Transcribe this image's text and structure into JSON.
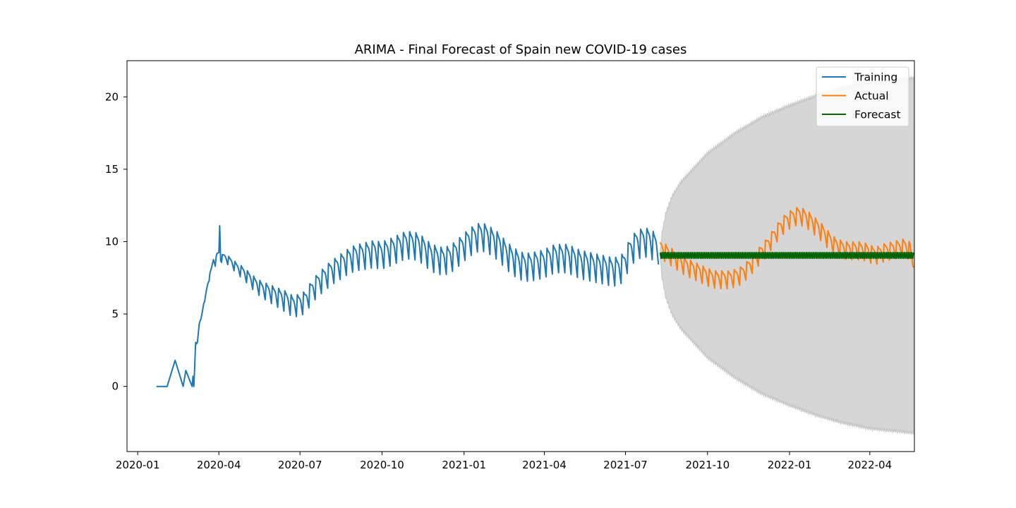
{
  "chart_data": {
    "type": "line",
    "title": "ARIMA - Final Forecast of Spain new COVID-19 cases",
    "xlabel": "",
    "ylabel": "",
    "x_axis": {
      "type": "date",
      "range": [
        "2019-12-20",
        "2022-05-21"
      ],
      "ticks": [
        {
          "date": "2020-01-01",
          "label": "2020-01"
        },
        {
          "date": "2020-04-01",
          "label": "2020-04"
        },
        {
          "date": "2020-07-01",
          "label": "2020-07"
        },
        {
          "date": "2020-10-01",
          "label": "2020-10"
        },
        {
          "date": "2021-01-01",
          "label": "2021-01"
        },
        {
          "date": "2021-04-01",
          "label": "2021-04"
        },
        {
          "date": "2021-07-01",
          "label": "2021-07"
        },
        {
          "date": "2021-10-01",
          "label": "2021-10"
        },
        {
          "date": "2022-01-01",
          "label": "2022-01"
        },
        {
          "date": "2022-04-01",
          "label": "2022-04"
        }
      ]
    },
    "y_axis": {
      "range": [
        -4.5,
        22.5
      ],
      "ticks": [
        {
          "value": 0,
          "label": "0"
        },
        {
          "value": 5,
          "label": "5"
        },
        {
          "value": 10,
          "label": "10"
        },
        {
          "value": 15,
          "label": "15"
        },
        {
          "value": 20,
          "label": "20"
        }
      ]
    },
    "grid": false,
    "legend": {
      "position": "top-right",
      "entries": [
        {
          "label": "Training",
          "color": "#1f77b4"
        },
        {
          "label": "Actual",
          "color": "#ff7f0e"
        },
        {
          "label": "Forecast",
          "color": "#006400"
        }
      ]
    },
    "series": [
      {
        "name": "Training",
        "color": "#1f77b4",
        "start": "2020-01-22",
        "end": "2021-08-07",
        "points": [
          [
            "2020-01-22",
            0
          ],
          [
            "2020-02-03",
            0
          ],
          [
            "2020-02-12",
            1.8
          ],
          [
            "2020-02-21",
            0
          ],
          [
            "2020-02-24",
            1.1
          ],
          [
            "2020-03-02",
            0
          ],
          [
            "2020-03-03",
            0.7
          ],
          [
            "2020-03-04",
            0
          ],
          [
            "2020-03-06",
            3.1
          ],
          [
            "2020-03-08",
            3.0
          ],
          [
            "2020-03-10",
            4.3
          ],
          [
            "2020-03-12",
            4.7
          ],
          [
            "2020-03-14",
            5.5
          ],
          [
            "2020-03-16",
            5.8
          ],
          [
            "2020-03-18",
            6.6
          ],
          [
            "2020-03-20",
            7.3
          ],
          [
            "2020-03-22",
            7.7
          ],
          [
            "2020-03-24",
            8.2
          ],
          [
            "2020-03-26",
            8.8
          ],
          [
            "2020-03-28",
            8.6
          ],
          [
            "2020-03-30",
            9.1
          ],
          [
            "2020-04-01",
            9.2
          ],
          [
            "2020-04-02",
            11.1
          ],
          [
            "2020-04-03",
            8.9
          ],
          [
            "2020-04-07",
            9.0
          ],
          [
            "2020-04-14",
            8.7
          ],
          [
            "2020-04-21",
            8.3
          ],
          [
            "2020-04-28",
            8.0
          ],
          [
            "2020-05-05",
            7.6
          ],
          [
            "2020-05-12",
            7.2
          ],
          [
            "2020-05-19",
            6.9
          ],
          [
            "2020-05-26",
            6.7
          ],
          [
            "2020-06-02",
            6.5
          ],
          [
            "2020-06-09",
            6.3
          ],
          [
            "2020-06-16",
            6.1
          ],
          [
            "2020-06-23",
            5.8
          ],
          [
            "2020-06-30",
            5.9
          ],
          [
            "2020-07-07",
            6.1
          ],
          [
            "2020-07-14",
            6.8
          ],
          [
            "2020-07-21",
            7.3
          ],
          [
            "2020-07-28",
            7.7
          ],
          [
            "2020-08-04",
            8.1
          ],
          [
            "2020-08-11",
            8.4
          ],
          [
            "2020-08-18",
            8.7
          ],
          [
            "2020-08-25",
            9.0
          ],
          [
            "2020-09-01",
            9.2
          ],
          [
            "2020-09-08",
            9.3
          ],
          [
            "2020-09-15",
            9.4
          ],
          [
            "2020-09-22",
            9.5
          ],
          [
            "2020-09-29",
            9.4
          ],
          [
            "2020-10-06",
            9.5
          ],
          [
            "2020-10-13",
            9.7
          ],
          [
            "2020-10-20",
            9.9
          ],
          [
            "2020-10-27",
            10.1
          ],
          [
            "2020-11-03",
            10.1
          ],
          [
            "2020-11-10",
            10.0
          ],
          [
            "2020-11-17",
            9.7
          ],
          [
            "2020-11-24",
            9.3
          ],
          [
            "2020-12-01",
            9.1
          ],
          [
            "2020-12-08",
            9.0
          ],
          [
            "2020-12-15",
            9.1
          ],
          [
            "2020-12-22",
            9.4
          ],
          [
            "2020-12-29",
            9.8
          ],
          [
            "2021-01-05",
            10.2
          ],
          [
            "2021-01-12",
            10.5
          ],
          [
            "2021-01-19",
            10.7
          ],
          [
            "2021-01-26",
            10.6
          ],
          [
            "2021-02-02",
            10.3
          ],
          [
            "2021-02-09",
            10.0
          ],
          [
            "2021-02-16",
            9.5
          ],
          [
            "2021-02-23",
            9.1
          ],
          [
            "2021-03-02",
            8.8
          ],
          [
            "2021-03-09",
            8.6
          ],
          [
            "2021-03-16",
            8.6
          ],
          [
            "2021-03-23",
            8.7
          ],
          [
            "2021-03-30",
            8.8
          ],
          [
            "2021-04-06",
            9.0
          ],
          [
            "2021-04-13",
            9.2
          ],
          [
            "2021-04-20",
            9.2
          ],
          [
            "2021-04-27",
            9.2
          ],
          [
            "2021-05-04",
            9.0
          ],
          [
            "2021-05-11",
            8.8
          ],
          [
            "2021-05-18",
            8.7
          ],
          [
            "2021-05-25",
            8.6
          ],
          [
            "2021-06-01",
            8.5
          ],
          [
            "2021-06-08",
            8.4
          ],
          [
            "2021-06-15",
            8.3
          ],
          [
            "2021-06-22",
            8.3
          ],
          [
            "2021-06-29",
            8.6
          ],
          [
            "2021-07-06",
            9.6
          ],
          [
            "2021-07-13",
            10.1
          ],
          [
            "2021-07-20",
            10.3
          ],
          [
            "2021-07-27",
            10.3
          ],
          [
            "2021-08-03",
            10.0
          ],
          [
            "2021-08-07",
            9.8
          ]
        ]
      },
      {
        "name": "Actual",
        "color": "#ff7f0e",
        "start": "2021-08-09",
        "end": "2022-05-20",
        "points": [
          [
            "2021-08-09",
            9.7
          ],
          [
            "2021-08-16",
            9.4
          ],
          [
            "2021-08-23",
            9.1
          ],
          [
            "2021-08-30",
            8.8
          ],
          [
            "2021-09-06",
            8.5
          ],
          [
            "2021-09-13",
            8.3
          ],
          [
            "2021-09-20",
            8.1
          ],
          [
            "2021-09-27",
            7.9
          ],
          [
            "2021-10-04",
            7.7
          ],
          [
            "2021-10-11",
            7.6
          ],
          [
            "2021-10-18",
            7.6
          ],
          [
            "2021-10-25",
            7.6
          ],
          [
            "2021-11-01",
            7.7
          ],
          [
            "2021-11-08",
            7.9
          ],
          [
            "2021-11-15",
            8.3
          ],
          [
            "2021-11-22",
            8.8
          ],
          [
            "2021-11-29",
            9.3
          ],
          [
            "2021-12-06",
            9.8
          ],
          [
            "2021-12-13",
            10.4
          ],
          [
            "2021-12-20",
            11.0
          ],
          [
            "2021-12-27",
            11.5
          ],
          [
            "2022-01-03",
            11.8
          ],
          [
            "2022-01-10",
            12.0
          ],
          [
            "2022-01-17",
            11.9
          ],
          [
            "2022-01-24",
            11.6
          ],
          [
            "2022-01-31",
            11.2
          ],
          [
            "2022-02-07",
            10.8
          ],
          [
            "2022-02-14",
            10.3
          ],
          [
            "2022-02-21",
            9.9
          ],
          [
            "2022-02-28",
            9.7
          ],
          [
            "2022-03-07",
            9.6
          ],
          [
            "2022-03-14",
            9.6
          ],
          [
            "2022-03-21",
            9.6
          ],
          [
            "2022-03-28",
            9.5
          ],
          [
            "2022-04-04",
            9.3
          ],
          [
            "2022-04-11",
            9.3
          ],
          [
            "2022-04-18",
            9.5
          ],
          [
            "2022-04-25",
            9.6
          ],
          [
            "2022-05-02",
            9.7
          ],
          [
            "2022-05-09",
            9.8
          ],
          [
            "2022-05-16",
            9.6
          ],
          [
            "2022-05-20",
            8.2
          ]
        ]
      },
      {
        "name": "Forecast",
        "color": "#006400",
        "start": "2021-08-09",
        "end": "2022-05-20",
        "points": [
          [
            "2021-08-09",
            9.05
          ],
          [
            "2021-09-01",
            9.05
          ],
          [
            "2021-10-01",
            9.05
          ],
          [
            "2021-11-01",
            9.05
          ],
          [
            "2021-12-01",
            9.05
          ],
          [
            "2022-01-01",
            9.05
          ],
          [
            "2022-02-01",
            9.05
          ],
          [
            "2022-03-01",
            9.05
          ],
          [
            "2022-04-01",
            9.05
          ],
          [
            "2022-05-20",
            9.05
          ]
        ]
      }
    ],
    "confidence_band": {
      "color": "#d6d6d6",
      "start": "2021-08-09",
      "end": "2022-05-20",
      "lower": [
        [
          "2021-08-09",
          8.8
        ],
        [
          "2021-08-11",
          7.5
        ],
        [
          "2021-08-15",
          6.2
        ],
        [
          "2021-08-22",
          5.0
        ],
        [
          "2021-09-01",
          4.0
        ],
        [
          "2021-10-01",
          2.0
        ],
        [
          "2021-11-01",
          0.6
        ],
        [
          "2021-12-01",
          -0.5
        ],
        [
          "2022-01-01",
          -1.3
        ],
        [
          "2022-02-01",
          -2.0
        ],
        [
          "2022-03-01",
          -2.5
        ],
        [
          "2022-04-01",
          -2.9
        ],
        [
          "2022-05-20",
          -3.2
        ]
      ],
      "upper": [
        [
          "2021-08-09",
          9.3
        ],
        [
          "2021-08-11",
          10.6
        ],
        [
          "2021-08-15",
          11.9
        ],
        [
          "2021-08-22",
          13.1
        ],
        [
          "2021-09-01",
          14.1
        ],
        [
          "2021-10-01",
          16.1
        ],
        [
          "2021-11-01",
          17.5
        ],
        [
          "2021-12-01",
          18.6
        ],
        [
          "2022-01-01",
          19.4
        ],
        [
          "2022-02-01",
          20.1
        ],
        [
          "2022-03-01",
          20.6
        ],
        [
          "2022-04-01",
          21.0
        ],
        [
          "2022-05-20",
          21.3
        ]
      ]
    }
  }
}
